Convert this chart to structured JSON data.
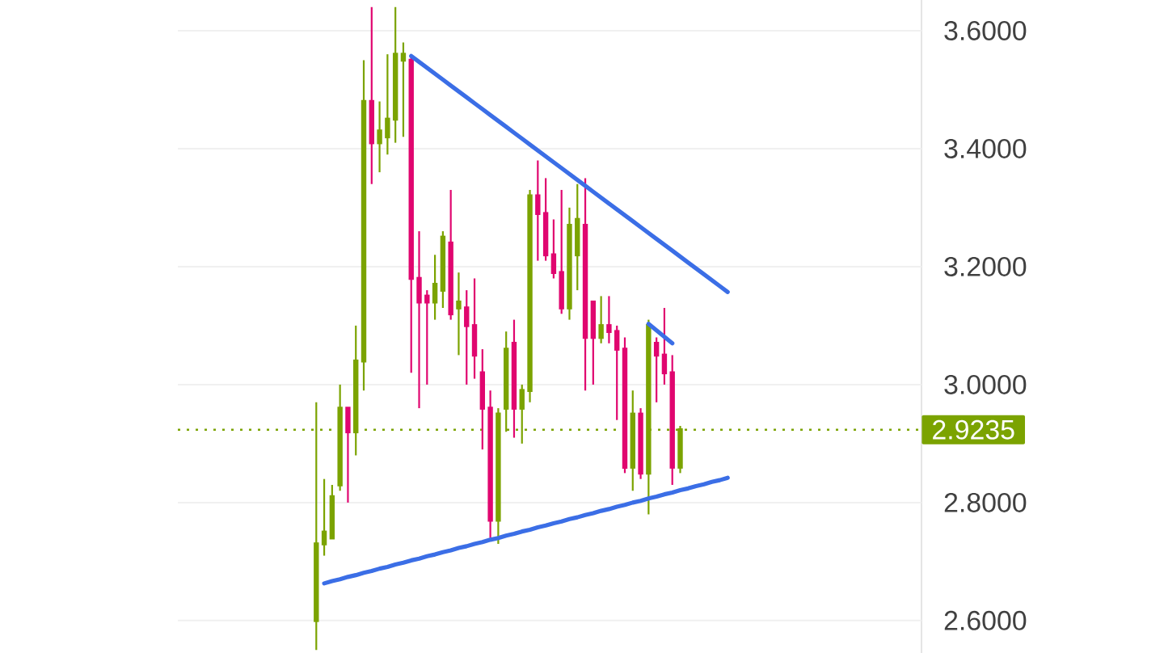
{
  "chart_data": {
    "type": "candlestick",
    "categories": [
      null,
      null,
      null,
      null,
      null,
      null,
      null,
      null,
      null,
      null,
      null,
      null,
      null,
      null,
      null,
      null,
      null,
      null,
      null,
      null,
      null,
      null,
      null,
      null,
      null,
      null,
      null,
      null,
      null,
      null,
      null,
      null,
      null,
      null,
      null,
      null,
      null,
      null,
      null,
      null,
      null,
      null,
      null,
      null,
      null,
      null,
      null,
      null,
      null,
      null,
      null,
      null,
      null,
      null,
      null,
      null,
      null,
      null,
      null,
      null,
      null,
      null,
      null,
      null,
      null,
      null,
      null,
      null,
      null,
      null,
      null,
      null,
      null,
      null,
      null,
      null,
      null,
      null,
      null,
      null,
      null,
      null,
      null,
      null,
      null,
      null,
      null,
      null,
      null,
      null,
      null,
      null,
      null,
      null
    ],
    "ohlc": [
      null,
      null,
      null,
      null,
      null,
      null,
      null,
      null,
      null,
      null,
      null,
      null,
      null,
      null,
      null,
      null,
      null,
      [
        2.6,
        2.97,
        2.55,
        2.73
      ],
      [
        2.73,
        2.84,
        2.71,
        2.75
      ],
      [
        2.74,
        2.83,
        2.74,
        2.81
      ],
      [
        2.83,
        3.0,
        2.82,
        2.96
      ],
      [
        2.96,
        2.96,
        2.8,
        2.92
      ],
      [
        2.92,
        3.1,
        2.88,
        3.04
      ],
      [
        3.04,
        3.55,
        2.99,
        3.48
      ],
      [
        3.48,
        3.64,
        3.34,
        3.41
      ],
      [
        3.41,
        3.48,
        3.36,
        3.43
      ],
      [
        3.42,
        3.56,
        3.39,
        3.45
      ],
      [
        3.45,
        3.64,
        3.41,
        3.56
      ],
      [
        3.55,
        3.58,
        3.42,
        3.56
      ],
      [
        3.55,
        3.56,
        3.02,
        3.18
      ],
      [
        3.18,
        3.26,
        2.96,
        3.14
      ],
      [
        3.15,
        3.16,
        3.0,
        3.14
      ],
      [
        3.14,
        3.22,
        3.11,
        3.17
      ],
      [
        3.16,
        3.26,
        3.13,
        3.25
      ],
      [
        3.24,
        3.33,
        3.11,
        3.12
      ],
      [
        3.13,
        3.19,
        3.05,
        3.14
      ],
      [
        3.13,
        3.16,
        3.0,
        3.1
      ],
      [
        3.1,
        3.18,
        3.01,
        3.05
      ],
      [
        3.02,
        3.06,
        2.89,
        2.96
      ],
      [
        2.96,
        2.99,
        2.74,
        2.77
      ],
      [
        2.77,
        2.96,
        2.73,
        2.95
      ],
      [
        2.96,
        3.09,
        2.92,
        3.06
      ],
      [
        3.07,
        3.11,
        2.91,
        2.96
      ],
      [
        2.96,
        3.0,
        2.9,
        2.99
      ],
      [
        2.99,
        3.33,
        2.97,
        3.32
      ],
      [
        3.32,
        3.38,
        3.21,
        3.29
      ],
      [
        3.29,
        3.35,
        3.21,
        3.22
      ],
      [
        3.22,
        3.28,
        3.18,
        3.19
      ],
      [
        3.19,
        3.33,
        3.12,
        3.13
      ],
      [
        3.13,
        3.3,
        3.11,
        3.27
      ],
      [
        3.22,
        3.34,
        3.16,
        3.28
      ],
      [
        3.27,
        3.35,
        2.99,
        3.08
      ],
      [
        3.14,
        3.14,
        3.0,
        3.08
      ],
      [
        3.08,
        3.15,
        3.07,
        3.1
      ],
      [
        3.1,
        3.15,
        3.07,
        3.09
      ],
      [
        3.09,
        3.1,
        2.94,
        3.06
      ],
      [
        3.06,
        3.08,
        2.85,
        2.86
      ],
      [
        2.86,
        2.99,
        2.82,
        2.95
      ],
      [
        2.95,
        2.96,
        2.84,
        2.85
      ],
      [
        2.85,
        3.11,
        2.78,
        3.1
      ],
      [
        3.07,
        3.08,
        2.97,
        3.05
      ],
      [
        3.05,
        3.13,
        3.0,
        3.02
      ],
      [
        3.02,
        3.05,
        2.83,
        2.86
      ],
      [
        2.86,
        2.93,
        2.85,
        2.9235
      ],
      null,
      null,
      null,
      null,
      null,
      null,
      null,
      null,
      null,
      null,
      null,
      null,
      null,
      null,
      null,
      null,
      null,
      null,
      null,
      null,
      null,
      null,
      null,
      null,
      null,
      null,
      null,
      null,
      null,
      null
    ],
    "colors": [
      null,
      null,
      null,
      null,
      null,
      null,
      null,
      null,
      null,
      null,
      null,
      null,
      null,
      null,
      null,
      null,
      null,
      "#7ba300",
      "#7ba300",
      "#7ba300",
      "#7ba300",
      "#e0066f",
      "#7ba300",
      "#7ba300",
      "#e0066f",
      "#7ba300",
      "#7ba300",
      "#7ba300",
      "#7ba300",
      "#e0066f",
      "#e0066f",
      "#e0066f",
      "#7ba300",
      "#7ba300",
      "#e0066f",
      "#7ba300",
      "#e0066f",
      "#e0066f",
      "#e0066f",
      "#e0066f",
      "#7ba300",
      "#7ba300",
      "#e0066f",
      "#7ba300",
      "#7ba300",
      "#e0066f",
      "#e0066f",
      "#e0066f",
      "#e0066f",
      "#7ba300",
      "#7ba300",
      "#e0066f",
      "#e0066f",
      "#7ba300",
      "#e0066f",
      "#e0066f",
      "#e0066f",
      "#7ba300",
      "#e0066f",
      "#7ba300",
      "#e0066f",
      "#e0066f",
      "#e0066f",
      "#7ba300",
      null,
      null,
      null,
      null,
      null,
      null,
      null,
      null,
      null,
      null,
      null,
      null,
      null,
      null,
      null,
      null,
      null,
      null,
      null,
      null,
      null,
      null,
      null,
      null,
      null,
      null,
      null,
      null,
      null,
      null
    ],
    "series": [
      {
        "type": "line",
        "color": "#3b6ee6",
        "values": [
          null,
          null,
          null,
          null,
          null,
          null,
          null,
          null,
          null,
          null,
          null,
          null,
          null,
          null,
          null,
          null,
          null,
          null,
          null,
          null,
          null,
          null,
          null,
          null,
          null,
          null,
          null,
          null,
          null,
          3.557,
          3.547,
          3.537,
          3.527,
          3.517,
          3.507,
          3.497,
          3.487,
          3.477,
          3.467,
          3.457,
          3.447,
          3.437,
          3.427,
          3.417,
          3.407,
          3.397,
          3.387,
          3.377,
          3.367,
          3.357,
          3.347,
          3.337,
          3.327,
          3.317,
          3.307,
          3.297,
          3.287,
          3.277,
          3.267,
          3.257,
          3.247,
          3.237,
          3.227,
          3.217,
          3.207,
          3.197,
          3.187,
          3.177,
          3.167,
          3.157,
          null,
          null,
          null,
          null,
          null,
          null,
          null,
          null,
          null,
          null,
          null,
          null,
          null,
          null,
          null,
          null,
          null,
          null,
          null,
          null,
          null,
          null,
          null,
          null
        ]
      },
      {
        "type": "line",
        "color": "#3b6ee6",
        "values": [
          null,
          null,
          null,
          null,
          null,
          null,
          null,
          null,
          null,
          null,
          null,
          null,
          null,
          null,
          null,
          null,
          null,
          null,
          2.663,
          2.667,
          2.67,
          2.674,
          2.677,
          2.681,
          2.684,
          2.688,
          2.691,
          2.695,
          2.698,
          2.702,
          2.705,
          2.709,
          2.712,
          2.716,
          2.719,
          2.723,
          2.726,
          2.73,
          2.733,
          2.737,
          2.74,
          2.744,
          2.747,
          2.751,
          2.754,
          2.758,
          2.761,
          2.765,
          2.768,
          2.772,
          2.775,
          2.779,
          2.782,
          2.786,
          2.789,
          2.793,
          2.796,
          2.8,
          2.803,
          2.807,
          2.81,
          2.814,
          2.817,
          2.821,
          2.824,
          2.828,
          2.831,
          2.835,
          2.838,
          2.842,
          null,
          null,
          null,
          null,
          null,
          null,
          null,
          null,
          null,
          null,
          null,
          null,
          null,
          null,
          null,
          null,
          null,
          null,
          null,
          null,
          null,
          null,
          null,
          null
        ]
      },
      {
        "type": "line",
        "color": "#3b6ee6",
        "values": [
          null,
          null,
          null,
          null,
          null,
          null,
          null,
          null,
          null,
          null,
          null,
          null,
          null,
          null,
          null,
          null,
          null,
          null,
          null,
          null,
          null,
          null,
          null,
          null,
          null,
          null,
          null,
          null,
          null,
          null,
          null,
          null,
          null,
          null,
          null,
          null,
          null,
          null,
          null,
          null,
          null,
          null,
          null,
          null,
          null,
          null,
          null,
          null,
          null,
          null,
          null,
          null,
          null,
          null,
          null,
          null,
          null,
          null,
          null,
          3.103,
          3.092,
          3.081,
          3.07,
          null,
          null,
          null,
          null,
          null,
          null,
          null,
          null,
          null,
          null,
          null,
          null,
          null,
          null,
          null,
          null,
          null,
          null,
          null,
          null,
          null,
          null,
          null,
          null,
          null,
          null,
          null,
          null,
          null,
          null,
          null
        ]
      }
    ],
    "ylim": [
      2.545,
      3.652
    ],
    "yticks": [
      {
        "value": 2.6,
        "label": "2.6000"
      },
      {
        "value": 2.8,
        "label": "2.8000"
      },
      {
        "value": 3.0,
        "label": "3.0000"
      },
      {
        "value": 3.2,
        "label": "3.2000"
      },
      {
        "value": 3.4,
        "label": "3.4000"
      },
      {
        "value": 3.6,
        "label": "3.6000"
      }
    ],
    "ref_lines": [
      {
        "axis": "y",
        "value": 2.9235,
        "label": "2.9235",
        "color": "#7ba300",
        "line_style": "dotted"
      }
    ],
    "grid": "y",
    "tick_labels": "y"
  }
}
